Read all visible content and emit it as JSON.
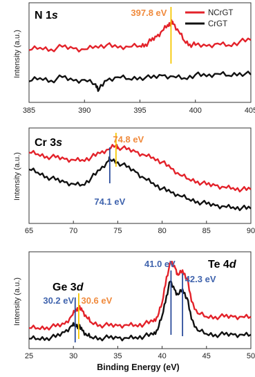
{
  "colors": {
    "ncrgt": "#e3222a",
    "crgt": "#111111",
    "orange": "#f08a3c",
    "blue": "#3f63ad",
    "yellowMarker": "#f6c700",
    "blueMarker": "#2b4c9b"
  },
  "xlabel_bottom": "Binding Energy (eV)",
  "chart_data": [
    {
      "type": "line",
      "title": "N 1s",
      "title_main": "N 1",
      "title_italic": "s",
      "ylabel": "Intensity (a.u.)",
      "xlim": [
        385,
        405
      ],
      "xticks": [
        385,
        390,
        395,
        400,
        405
      ],
      "legend": {
        "position": "top-right",
        "entries": [
          "NCrGT",
          "CrGT"
        ]
      },
      "series": [
        {
          "name": "NCrGT",
          "color_key": "ncrgt",
          "x": [
            385,
            386,
            387,
            388,
            389,
            390,
            391,
            392,
            393,
            394,
            395,
            395.5,
            396,
            396.5,
            397,
            397.5,
            397.8,
            398,
            398.5,
            399,
            399.5,
            400,
            401,
            402,
            403,
            404,
            405
          ],
          "y": [
            0.52,
            0.55,
            0.53,
            0.56,
            0.54,
            0.53,
            0.57,
            0.58,
            0.55,
            0.56,
            0.57,
            0.59,
            0.63,
            0.68,
            0.75,
            0.82,
            0.85,
            0.83,
            0.74,
            0.63,
            0.59,
            0.58,
            0.57,
            0.6,
            0.58,
            0.62,
            0.64
          ]
        },
        {
          "name": "CrGT",
          "color_key": "crgt",
          "x": [
            385,
            386,
            387,
            388,
            389,
            390,
            391,
            391.3,
            392,
            393,
            394,
            395,
            396,
            397,
            398,
            399,
            400,
            401,
            402,
            403,
            404,
            405
          ],
          "y": [
            0.15,
            0.19,
            0.16,
            0.2,
            0.16,
            0.17,
            0.12,
            0.05,
            0.16,
            0.2,
            0.18,
            0.2,
            0.19,
            0.22,
            0.21,
            0.19,
            0.23,
            0.21,
            0.24,
            0.22,
            0.25,
            0.23
          ]
        }
      ],
      "annotations": [
        {
          "text": "397.8 eV",
          "x": 397.8,
          "color_key": "orange",
          "marker_key": "yellowMarker"
        }
      ]
    },
    {
      "type": "line",
      "title": "Cr 3s",
      "title_main": "Cr 3",
      "title_italic": "s",
      "ylabel": "Intensity (a.u.)",
      "xlim": [
        65,
        90
      ],
      "xticks": [
        65,
        70,
        75,
        80,
        85,
        90
      ],
      "series": [
        {
          "name": "NCrGT",
          "color_key": "ncrgt",
          "x": [
            65,
            66,
            67,
            68,
            69,
            70,
            71,
            72,
            73,
            74,
            74.8,
            75,
            76,
            77,
            78,
            79,
            80,
            81,
            82,
            83,
            84,
            85,
            86,
            87,
            88,
            89,
            90
          ],
          "y": [
            0.78,
            0.76,
            0.73,
            0.72,
            0.7,
            0.69,
            0.69,
            0.72,
            0.77,
            0.82,
            0.87,
            0.85,
            0.82,
            0.79,
            0.75,
            0.72,
            0.66,
            0.58,
            0.5,
            0.45,
            0.42,
            0.38,
            0.37,
            0.35,
            0.34,
            0.32,
            0.32
          ]
        },
        {
          "name": "CrGT",
          "color_key": "crgt",
          "x": [
            65,
            66,
            67,
            68,
            69,
            70,
            71,
            72,
            73,
            74,
            74.1,
            75,
            76,
            77,
            78,
            79,
            80,
            81,
            82,
            83,
            84,
            85,
            86,
            87,
            88,
            89,
            90
          ],
          "y": [
            0.57,
            0.53,
            0.48,
            0.44,
            0.41,
            0.39,
            0.38,
            0.46,
            0.56,
            0.68,
            0.7,
            0.66,
            0.6,
            0.54,
            0.46,
            0.4,
            0.33,
            0.28,
            0.24,
            0.2,
            0.17,
            0.14,
            0.12,
            0.11,
            0.1,
            0.09,
            0.08
          ]
        }
      ],
      "annotations": [
        {
          "text": "74.8 eV",
          "x": 74.8,
          "color_key": "orange",
          "marker_key": "yellowMarker"
        },
        {
          "text": "74.1 eV",
          "x": 74.1,
          "color_key": "blue",
          "marker_key": "blueMarker"
        }
      ]
    },
    {
      "type": "line",
      "title": "Ge 3d",
      "title_main": "Ge 3",
      "title_italic": "d",
      "second_title_main": "Te 4",
      "second_title_italic": "d",
      "ylabel": "Intensity (a.u.)",
      "xlabel": "Binding Energy (eV)",
      "xlim": [
        25,
        50
      ],
      "xticks": [
        25,
        30,
        35,
        40,
        45,
        50
      ],
      "series": [
        {
          "name": "NCrGT",
          "color_key": "ncrgt",
          "x": [
            25,
            26,
            27,
            28,
            29,
            29.8,
            30.3,
            30.6,
            31,
            31.5,
            32,
            33,
            34,
            35,
            36,
            37,
            38,
            39,
            39.5,
            40,
            40.5,
            41,
            41.5,
            41.8,
            42.3,
            42.8,
            43.3,
            44,
            45,
            46,
            47,
            48,
            49,
            50
          ],
          "y": [
            0.15,
            0.15,
            0.16,
            0.17,
            0.2,
            0.3,
            0.38,
            0.4,
            0.36,
            0.28,
            0.22,
            0.19,
            0.18,
            0.18,
            0.19,
            0.19,
            0.2,
            0.23,
            0.29,
            0.46,
            0.78,
            0.96,
            0.88,
            0.8,
            0.86,
            0.76,
            0.48,
            0.33,
            0.29,
            0.29,
            0.29,
            0.29,
            0.29,
            0.29
          ]
        },
        {
          "name": "CrGT",
          "color_key": "crgt",
          "x": [
            25,
            26,
            27,
            28,
            29,
            29.8,
            30.2,
            30.6,
            31,
            31.5,
            32,
            33,
            34,
            35,
            36,
            37,
            38,
            39,
            39.5,
            40,
            40.5,
            40.9,
            41.4,
            41.8,
            42.3,
            42.8,
            43.3,
            44,
            45,
            46,
            47,
            48,
            49,
            50
          ],
          "y": [
            0.02,
            0.02,
            0.03,
            0.04,
            0.1,
            0.18,
            0.2,
            0.17,
            0.12,
            0.06,
            0.04,
            0.03,
            0.03,
            0.03,
            0.03,
            0.04,
            0.05,
            0.07,
            0.13,
            0.3,
            0.55,
            0.72,
            0.62,
            0.56,
            0.63,
            0.52,
            0.26,
            0.12,
            0.08,
            0.07,
            0.07,
            0.07,
            0.07,
            0.07
          ]
        }
      ],
      "annotations": [
        {
          "text": "30.2 eV",
          "x": 30.2,
          "color_key": "blue",
          "marker_key": "blueMarker"
        },
        {
          "text": "30.6 eV",
          "x": 30.6,
          "color_key": "orange",
          "marker_key": "yellowMarker"
        },
        {
          "text": "41.0 eV",
          "x": 41.0,
          "color_key": "blue",
          "marker_key": "blueMarker"
        },
        {
          "text": "42.3 eV",
          "x": 42.3,
          "color_key": "blue",
          "marker_key": "blueMarker"
        }
      ]
    }
  ]
}
